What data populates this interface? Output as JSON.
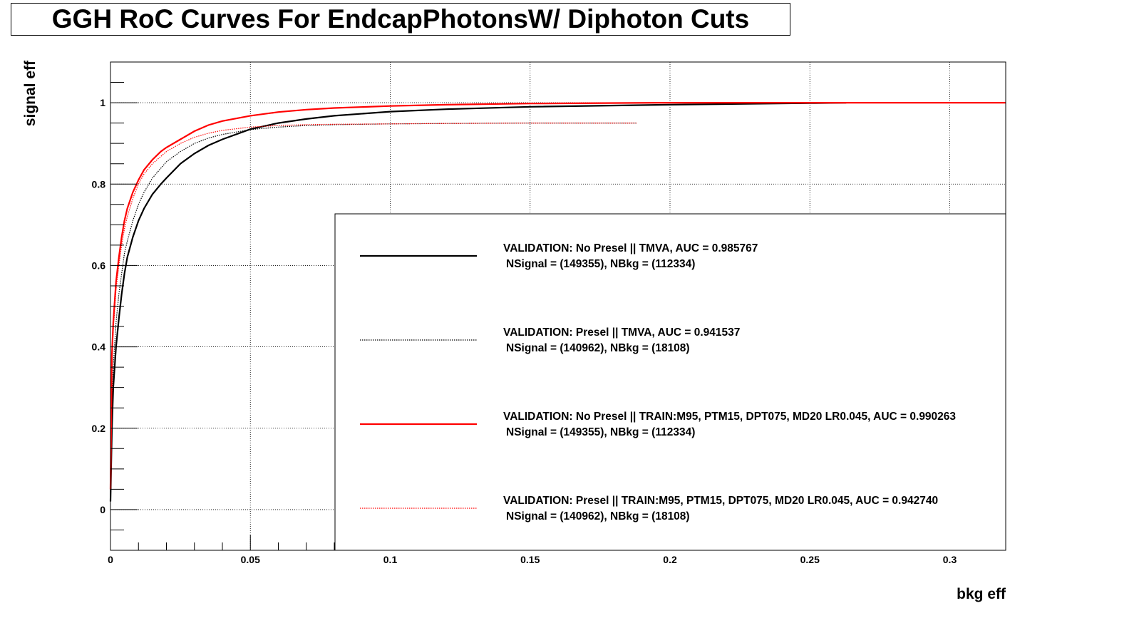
{
  "chart_data": {
    "type": "line",
    "title": "GGH RoC Curves For EndcapPhotonsW/ Diphoton Cuts",
    "xlabel": "bkg eff",
    "ylabel": "signal eff",
    "xlim": [
      0,
      0.32
    ],
    "ylim": [
      -0.1,
      1.1
    ],
    "xticks": [
      0,
      0.05,
      0.1,
      0.15,
      0.2,
      0.25,
      0.3
    ],
    "xtick_labels": [
      "0",
      "0.05",
      "0.1",
      "0.15",
      "0.2",
      "0.25",
      "0.3"
    ],
    "yticks": [
      0,
      0.2,
      0.4,
      0.6,
      0.8,
      1
    ],
    "ytick_labels": [
      "0",
      "0.2",
      "0.4",
      "0.6",
      "0.8",
      "1"
    ],
    "grid": true,
    "legend_position": "bottom-right",
    "series": [
      {
        "name": "VALIDATION: No Presel || TMVA, AUC = 0.985767",
        "subtitle": "NSignal = (149355), NBkg = (112334)",
        "color": "#000000",
        "style": "solid",
        "x": [
          0,
          0.0005,
          0.001,
          0.002,
          0.003,
          0.004,
          0.005,
          0.006,
          0.008,
          0.01,
          0.012,
          0.015,
          0.018,
          0.02,
          0.025,
          0.03,
          0.035,
          0.04,
          0.05,
          0.06,
          0.07,
          0.08,
          0.1,
          0.12,
          0.15,
          0.2,
          0.25,
          0.263
        ],
        "y": [
          0.02,
          0.2,
          0.3,
          0.4,
          0.47,
          0.53,
          0.58,
          0.62,
          0.67,
          0.71,
          0.74,
          0.775,
          0.8,
          0.815,
          0.85,
          0.875,
          0.895,
          0.91,
          0.935,
          0.95,
          0.96,
          0.968,
          0.978,
          0.984,
          0.99,
          0.995,
          0.999,
          1.0
        ]
      },
      {
        "name": "VALIDATION: Presel || TMVA, AUC = 0.941537",
        "subtitle": "NSignal = (140962), NBkg = (18108)",
        "color": "#000000",
        "style": "dotted",
        "x": [
          0,
          0.0005,
          0.001,
          0.002,
          0.003,
          0.004,
          0.005,
          0.006,
          0.008,
          0.01,
          0.012,
          0.015,
          0.02,
          0.025,
          0.03,
          0.035,
          0.04,
          0.05,
          0.06,
          0.07,
          0.08,
          0.1,
          0.12,
          0.15,
          0.18,
          0.188
        ],
        "y": [
          0.02,
          0.25,
          0.35,
          0.46,
          0.53,
          0.58,
          0.63,
          0.66,
          0.71,
          0.75,
          0.78,
          0.815,
          0.855,
          0.88,
          0.9,
          0.913,
          0.922,
          0.934,
          0.94,
          0.944,
          0.946,
          0.948,
          0.949,
          0.95,
          0.95,
          0.95
        ]
      },
      {
        "name": "VALIDATION: No Presel || TRAIN:M95, PTM15, DPT075, MD20 LR0.045, AUC = 0.990263",
        "subtitle": "NSignal = (149355), NBkg = (112334)",
        "color": "#ff0000",
        "style": "solid",
        "x": [
          0,
          0.0005,
          0.001,
          0.002,
          0.003,
          0.004,
          0.005,
          0.006,
          0.008,
          0.01,
          0.012,
          0.015,
          0.018,
          0.02,
          0.025,
          0.03,
          0.035,
          0.04,
          0.05,
          0.06,
          0.07,
          0.08,
          0.1,
          0.12,
          0.15,
          0.2,
          0.25,
          0.3,
          0.32
        ],
        "y": [
          0.05,
          0.38,
          0.46,
          0.56,
          0.62,
          0.67,
          0.71,
          0.74,
          0.78,
          0.81,
          0.835,
          0.86,
          0.88,
          0.89,
          0.91,
          0.93,
          0.945,
          0.955,
          0.968,
          0.977,
          0.983,
          0.987,
          0.992,
          0.995,
          0.998,
          1.0,
          1.0,
          1.0,
          1.0
        ]
      },
      {
        "name": "VALIDATION: Presel || TRAIN:M95, PTM15, DPT075, MD20 LR0.045, AUC = 0.942740",
        "subtitle": "NSignal = (140962), NBkg = (18108)",
        "color": "#ff0000",
        "style": "dotted",
        "x": [
          0,
          0.0005,
          0.001,
          0.002,
          0.003,
          0.004,
          0.005,
          0.006,
          0.008,
          0.01,
          0.012,
          0.015,
          0.02,
          0.025,
          0.03,
          0.035,
          0.04,
          0.05,
          0.06,
          0.07,
          0.08,
          0.1,
          0.12,
          0.15,
          0.18,
          0.188
        ],
        "y": [
          0.05,
          0.36,
          0.44,
          0.54,
          0.6,
          0.65,
          0.69,
          0.72,
          0.765,
          0.8,
          0.825,
          0.85,
          0.88,
          0.9,
          0.915,
          0.925,
          0.932,
          0.94,
          0.944,
          0.946,
          0.947,
          0.948,
          0.949,
          0.95,
          0.95,
          0.95
        ]
      }
    ]
  }
}
